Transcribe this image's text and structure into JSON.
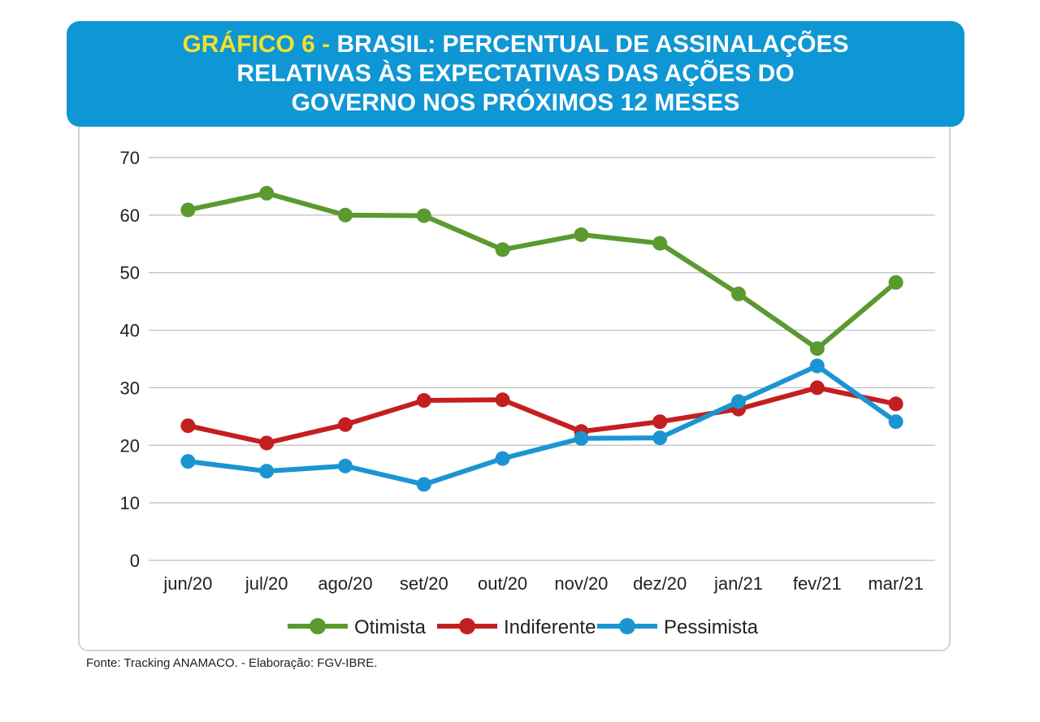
{
  "title": {
    "prefix": "GRÁFICO 6 -",
    "line1": "BRASIL: PERCENTUAL DE ASSINALAÇÕES",
    "line2": "RELATIVAS ÀS EXPECTATIVAS DAS AÇÕES DO",
    "line3": "GOVERNO NOS PRÓXIMOS 12 MESES"
  },
  "source": "Fonte: Tracking ANAMACO. - Elaboração: FGV-IBRE.",
  "colors": {
    "banner": "#0f96d4",
    "prefix": "#f2e12a",
    "grid": "#bdbdbd"
  },
  "chart_data": {
    "type": "line",
    "categories": [
      "jun/20",
      "jul/20",
      "ago/20",
      "set/20",
      "out/20",
      "nov/20",
      "dez/20",
      "jan/21",
      "fev/21",
      "mar/21"
    ],
    "ylim": [
      0,
      70
    ],
    "yticks": [
      0,
      10,
      20,
      30,
      40,
      50,
      60,
      70
    ],
    "grid": true,
    "legend_position": "bottom",
    "series": [
      {
        "name": "Otimista",
        "color": "#5a9a2f",
        "values": [
          60.9,
          63.8,
          60.0,
          59.9,
          54.0,
          56.6,
          55.1,
          46.3,
          36.8,
          48.3
        ]
      },
      {
        "name": "Indiferente",
        "color": "#c41f1f",
        "values": [
          23.4,
          20.4,
          23.6,
          27.8,
          27.9,
          22.4,
          24.1,
          26.3,
          30.0,
          27.2
        ]
      },
      {
        "name": "Pessimista",
        "color": "#1b95d2",
        "values": [
          17.2,
          15.5,
          16.4,
          13.2,
          17.7,
          21.2,
          21.3,
          27.6,
          33.8,
          24.1
        ]
      }
    ]
  }
}
